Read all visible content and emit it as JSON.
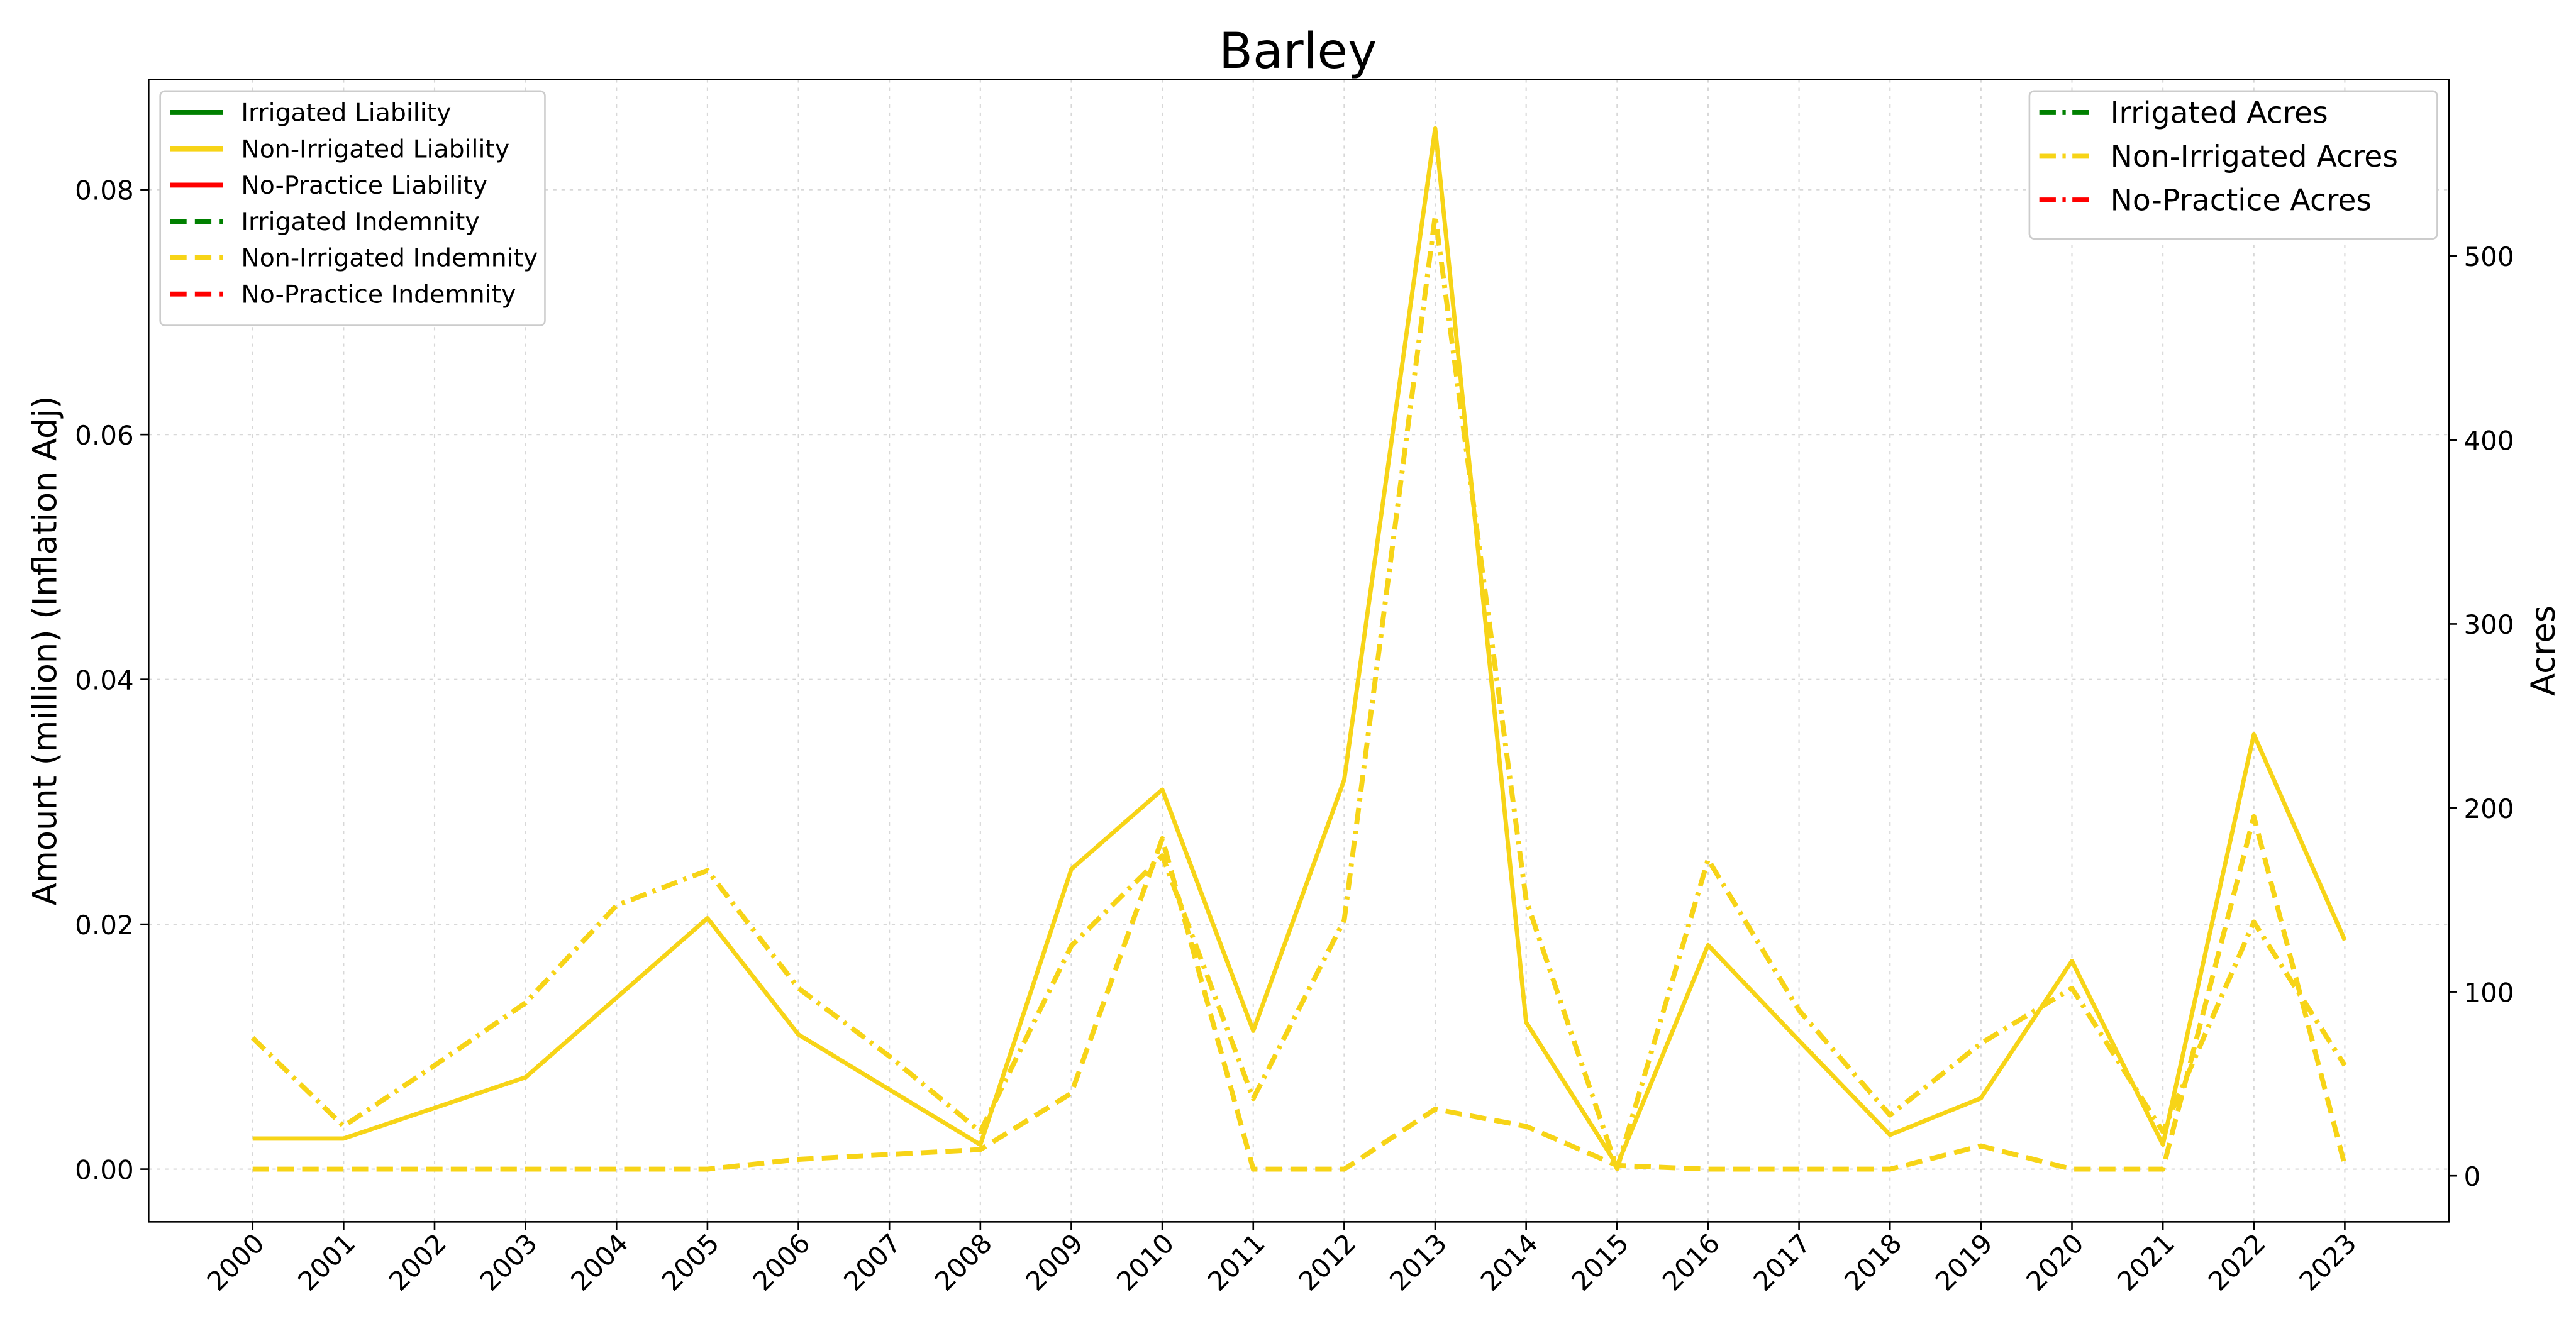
{
  "chart_data": {
    "type": "line",
    "title": "Barley",
    "ylabel": "Amount (million) (Inflation Adj)",
    "y2label": "Acres",
    "categories": [
      "2000",
      "2001",
      "2002",
      "2003",
      "2004",
      "2005",
      "2006",
      "2007",
      "2008",
      "2009",
      "2010",
      "2011",
      "2012",
      "2013",
      "2014",
      "2015",
      "2016",
      "2017",
      "2018",
      "2019",
      "2020",
      "2021",
      "2022",
      "2023"
    ],
    "ylim": [
      -0.0043,
      0.089
    ],
    "yticks": [
      {
        "value": 0,
        "label": "0.00"
      },
      0.02,
      0.04,
      0.06,
      0.08
    ],
    "y2lim": [
      -25,
      596
    ],
    "y2ticks": [
      0,
      100,
      200,
      300,
      400,
      500
    ],
    "grid": true,
    "legend": "upper left",
    "legend2": "upper right",
    "series": [
      {
        "name": "Irrigated Liability",
        "color": "#008000",
        "style": "solid",
        "values": [
          null,
          null,
          null,
          null,
          null,
          null,
          null,
          null,
          null,
          null,
          null,
          null,
          null,
          null,
          null,
          null,
          null,
          null,
          null,
          null,
          null,
          null,
          null,
          null
        ]
      },
      {
        "name": "Non-Irrigated Liability",
        "color": "#f7d417",
        "style": "solid",
        "values": [
          0.0025,
          0.0025,
          0.005,
          0.0075,
          0.014,
          0.0205,
          0.011,
          0.0065,
          0.002,
          0.0245,
          0.031,
          0.0113,
          0.0318,
          0.085,
          0.012,
          0.0003,
          0.0183,
          0.0105,
          0.0028,
          0.0058,
          0.017,
          0.002,
          0.0355,
          0.0187
        ]
      },
      {
        "name": "No-Practice Liability",
        "color": "#ff0000",
        "style": "solid",
        "values": [
          null,
          null,
          null,
          null,
          null,
          null,
          null,
          null,
          null,
          null,
          null,
          null,
          null,
          null,
          null,
          null,
          null,
          null,
          null,
          null,
          null,
          null,
          null,
          null
        ]
      },
      {
        "name": "Irrigated Indemnity",
        "color": "#008000",
        "style": "dashed",
        "values": [
          null,
          null,
          null,
          null,
          null,
          null,
          null,
          null,
          null,
          null,
          null,
          null,
          null,
          null,
          null,
          null,
          null,
          null,
          null,
          null,
          null,
          null,
          null,
          null
        ]
      },
      {
        "name": "Non-Irrigated Indemnity",
        "color": "#f7d417",
        "style": "dashed",
        "values": [
          0,
          0,
          0,
          0,
          0,
          0,
          0.0008,
          0.0012,
          0.0016,
          0.0062,
          0.027,
          0,
          0,
          0.0049,
          0.0035,
          0.0003,
          0,
          0,
          0,
          0.0019,
          0,
          0,
          0.0288,
          0.0003
        ]
      },
      {
        "name": "No-Practice Indemnity",
        "color": "#ff0000",
        "style": "dashed",
        "values": [
          null,
          null,
          null,
          null,
          null,
          null,
          null,
          null,
          null,
          null,
          null,
          null,
          null,
          null,
          null,
          null,
          null,
          null,
          null,
          null,
          null,
          null,
          null,
          null
        ]
      },
      {
        "name": "Irrigated Acres",
        "color": "#008000",
        "style": "dashdot",
        "axis": "y2",
        "values": [
          null,
          null,
          null,
          null,
          null,
          null,
          null,
          null,
          null,
          null,
          null,
          null,
          null,
          null,
          null,
          null,
          null,
          null,
          null,
          null,
          null,
          null,
          null,
          null
        ]
      },
      {
        "name": "Non-Irrigated Acres",
        "color": "#f7d417",
        "style": "dashdot",
        "axis": "y2",
        "values": [
          75,
          27,
          60,
          94,
          147,
          166,
          102,
          65,
          24,
          125,
          174,
          42,
          139,
          522,
          150,
          4,
          172,
          90,
          33,
          72,
          102,
          24,
          138,
          60
        ]
      },
      {
        "name": "No-Practice Acres",
        "color": "#ff0000",
        "style": "dashdot",
        "axis": "y2",
        "values": [
          null,
          null,
          null,
          null,
          null,
          null,
          null,
          null,
          null,
          null,
          null,
          null,
          null,
          null,
          null,
          null,
          null,
          null,
          null,
          null,
          null,
          null,
          null,
          null
        ]
      }
    ]
  }
}
